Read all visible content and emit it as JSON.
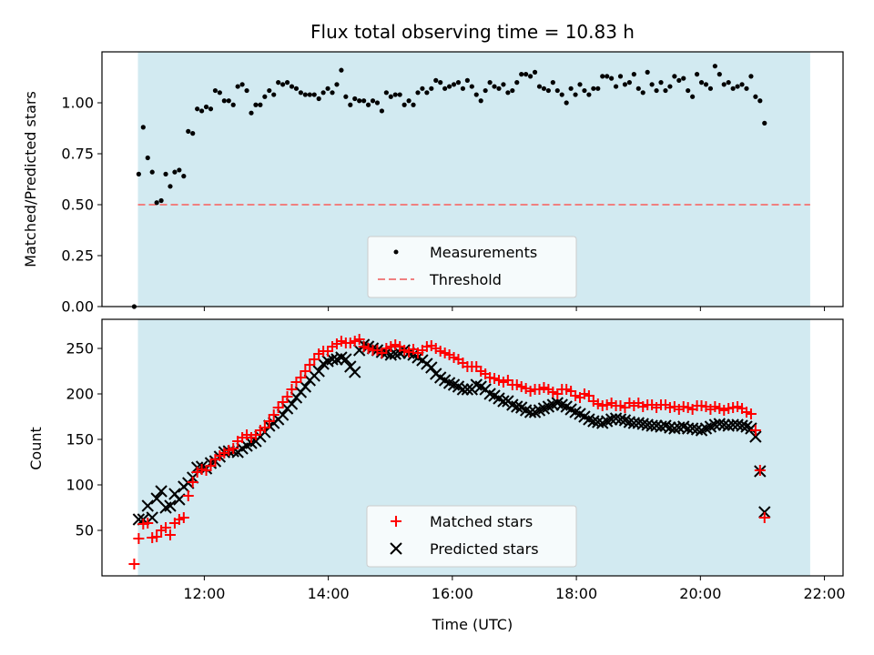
{
  "chart_data": {
    "title": "Flux total observing time = 10.83 h",
    "xlabel": "Time (UTC)",
    "x_unit": "hours UTC",
    "xlim": [
      10.35,
      22.3
    ],
    "xticks": [
      12,
      14,
      16,
      18,
      20,
      22
    ],
    "xtick_labels": [
      "12:00",
      "14:00",
      "16:00",
      "18:00",
      "20:00",
      "22:00"
    ],
    "observing_window": [
      10.93,
      21.77
    ],
    "colors": {
      "window": "#add8e6",
      "measurements": "#000000",
      "threshold": "#f08080",
      "matched": "#ff0000",
      "predicted": "#000000"
    },
    "panels": [
      {
        "type": "scatter",
        "ylabel": "Matched/Predicted stars",
        "ylim": [
          0,
          1.25
        ],
        "yticks": [
          0,
          0.25,
          0.5,
          0.75,
          1.0
        ],
        "ytick_labels": [
          "0.00",
          "0.25",
          "0.50",
          "0.75",
          "1.00"
        ],
        "legend_position": "lower-center",
        "threshold": {
          "name": "Threshold",
          "value": 0.5
        },
        "series": [
          {
            "name": "Measurements",
            "x_start": 10.87,
            "x_step": 0.0726,
            "y": [
              0.0,
              0.65,
              0.88,
              0.73,
              0.66,
              0.51,
              0.52,
              0.65,
              0.59,
              0.66,
              0.67,
              0.64,
              0.86,
              0.85,
              0.97,
              0.96,
              0.98,
              0.97,
              1.06,
              1.05,
              1.01,
              1.01,
              0.99,
              1.08,
              1.09,
              1.06,
              0.95,
              0.99,
              0.99,
              1.03,
              1.06,
              1.04,
              1.1,
              1.09,
              1.1,
              1.08,
              1.07,
              1.05,
              1.04,
              1.04,
              1.04,
              1.02,
              1.05,
              1.07,
              1.05,
              1.09,
              1.16,
              1.03,
              0.99,
              1.02,
              1.01,
              1.01,
              0.99,
              1.01,
              1.0,
              0.96,
              1.05,
              1.03,
              1.04,
              1.04,
              0.99,
              1.01,
              0.99,
              1.05,
              1.07,
              1.05,
              1.07,
              1.11,
              1.1,
              1.07,
              1.08,
              1.09,
              1.1,
              1.07,
              1.11,
              1.08,
              1.04,
              1.01,
              1.06,
              1.1,
              1.08,
              1.07,
              1.09,
              1.05,
              1.06,
              1.1,
              1.14,
              1.14,
              1.13,
              1.15,
              1.08,
              1.07,
              1.06,
              1.1,
              1.06,
              1.04,
              1.0,
              1.07,
              1.04,
              1.09,
              1.06,
              1.04,
              1.07,
              1.07,
              1.13,
              1.13,
              1.12,
              1.08,
              1.13,
              1.09,
              1.1,
              1.14,
              1.07,
              1.05,
              1.15,
              1.09,
              1.06,
              1.1,
              1.06,
              1.08,
              1.13,
              1.11,
              1.12,
              1.06,
              1.03,
              1.14,
              1.1,
              1.09,
              1.07,
              1.18,
              1.14,
              1.09,
              1.1,
              1.07,
              1.08,
              1.09,
              1.07,
              1.13,
              1.03,
              1.01,
              0.9
            ]
          }
        ]
      },
      {
        "type": "scatter",
        "ylabel": "Count",
        "ylim": [
          0,
          282
        ],
        "yticks": [
          50,
          100,
          150,
          200,
          250
        ],
        "ytick_labels": [
          "50",
          "100",
          "150",
          "200",
          "250"
        ],
        "legend_position": "lower-center",
        "series": [
          {
            "name": "Matched stars",
            "x_start": 10.87,
            "x_step": 0.0726,
            "y": [
              13,
              41,
              57,
              58,
              42,
              43,
              50,
              53,
              45,
              58,
              62,
              64,
              88,
              103,
              114,
              117,
              116,
              121,
              128,
              132,
              135,
              138,
              140,
              148,
              152,
              155,
              152,
              155,
              160,
              163,
              170,
              177,
              185,
              191,
              197,
              205,
              213,
              218,
              225,
              232,
              238,
              244,
              247,
              247,
              252,
              255,
              258,
              256,
              256,
              258,
              260,
              252,
              250,
              248,
              248,
              245,
              250,
              252,
              254,
              252,
              248,
              246,
              249,
              245,
              248,
              252,
              253,
              250,
              247,
              245,
              243,
              240,
              238,
              234,
              230,
              230,
              230,
              225,
              222,
              218,
              217,
              215,
              213,
              215,
              210,
              210,
              208,
              206,
              203,
              205,
              205,
              207,
              205,
              202,
              200,
              205,
              205,
              203,
              198,
              196,
              200,
              198,
              192,
              189,
              187,
              188,
              190,
              187,
              187,
              185,
              190,
              187,
              190,
              186,
              188,
              188,
              185,
              188,
              188,
              185,
              186,
              183,
              186,
              185,
              183,
              187,
              187,
              186,
              183,
              186,
              184,
              182,
              184,
              185,
              186,
              184,
              180,
              178,
              160,
              116,
              64
            ]
          },
          {
            "name": "Predicted stars",
            "x_start": 10.87,
            "x_step": 0.0726,
            "y": [
              null,
              62,
              62,
              77,
              64,
              85,
              93,
              75,
              77,
              90,
              84,
              98,
              102,
              108,
              119,
              120,
              118,
              124,
              126,
              131,
              136,
              137,
              137,
              136,
              140,
              143,
              146,
              148,
              153,
              158,
              165,
              168,
              172,
              177,
              184,
              189,
              196,
              202,
              208,
              215,
              220,
              225,
              233,
              236,
              238,
              238,
              240,
              238,
              230,
              224,
              248,
              254,
              252,
              250,
              248,
              246,
              245,
              243,
              244,
              245,
              248,
              245,
              243,
              240,
              237,
              233,
              229,
              222,
              218,
              215,
              212,
              210,
              208,
              205,
              205,
              205,
              210,
              208,
              205,
              200,
              198,
              195,
              192,
              192,
              188,
              186,
              185,
              182,
              180,
              180,
              182,
              184,
              186,
              188,
              190,
              188,
              186,
              183,
              180,
              178,
              175,
              172,
              170,
              169,
              168,
              170,
              172,
              173,
              172,
              171,
              169,
              168,
              168,
              167,
              166,
              165,
              165,
              164,
              165,
              163,
              162,
              163,
              164,
              162,
              162,
              161,
              160,
              162,
              164,
              166,
              167,
              166,
              165,
              166,
              166,
              165,
              164,
              162,
              153,
              115,
              70
            ]
          }
        ]
      }
    ]
  }
}
